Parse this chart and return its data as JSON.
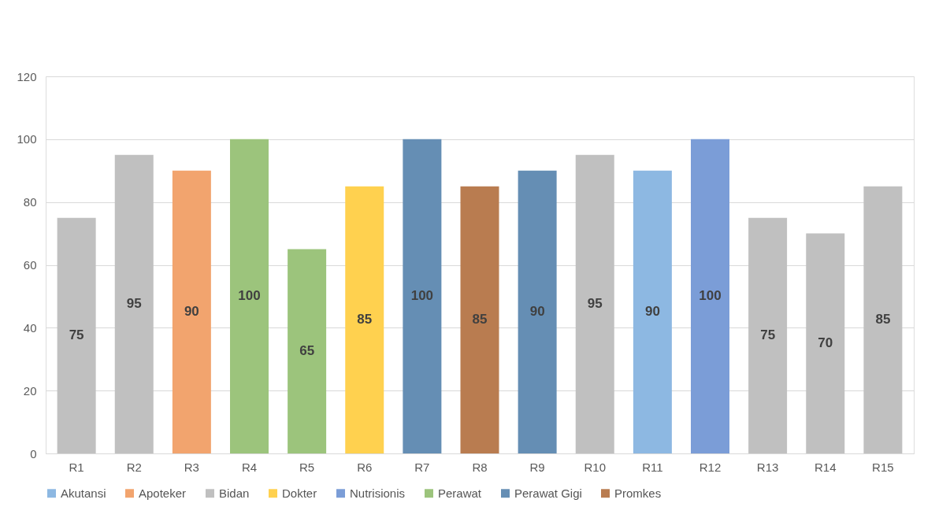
{
  "chart_data": {
    "type": "bar",
    "categories": [
      "R1",
      "R2",
      "R3",
      "R4",
      "R5",
      "R6",
      "R7",
      "R8",
      "R9",
      "R10",
      "R11",
      "R12",
      "R13",
      "R14",
      "R15"
    ],
    "series": [
      {
        "name": "Akutansi",
        "color": "#8db8e2",
        "values": [
          null,
          null,
          null,
          null,
          null,
          null,
          null,
          null,
          null,
          null,
          90,
          null,
          null,
          null,
          null
        ]
      },
      {
        "name": "Apoteker",
        "color": "#f2a46e",
        "values": [
          null,
          null,
          90,
          null,
          null,
          null,
          null,
          null,
          null,
          null,
          null,
          null,
          null,
          null,
          null
        ]
      },
      {
        "name": "Bidan",
        "color": "#c0c0c0",
        "values": [
          75,
          95,
          null,
          null,
          null,
          null,
          null,
          null,
          null,
          95,
          null,
          null,
          75,
          70,
          85
        ]
      },
      {
        "name": "Dokter",
        "color": "#ffd14f",
        "values": [
          null,
          null,
          null,
          null,
          null,
          85,
          null,
          null,
          null,
          null,
          null,
          null,
          null,
          null,
          null
        ]
      },
      {
        "name": "Nutrisionis",
        "color": "#7b9dd7",
        "values": [
          null,
          null,
          null,
          null,
          null,
          null,
          null,
          null,
          null,
          null,
          null,
          100,
          null,
          null,
          null
        ]
      },
      {
        "name": "Perawat",
        "color": "#9cc47c",
        "values": [
          null,
          null,
          null,
          100,
          65,
          null,
          null,
          null,
          null,
          null,
          null,
          null,
          null,
          null,
          null
        ]
      },
      {
        "name": "Perawat Gigi",
        "color": "#658eb4",
        "values": [
          null,
          null,
          null,
          null,
          null,
          null,
          100,
          null,
          90,
          null,
          null,
          null,
          null,
          null,
          null
        ]
      },
      {
        "name": "Promkes",
        "color": "#b97c50",
        "values": [
          null,
          null,
          null,
          null,
          null,
          null,
          null,
          85,
          null,
          null,
          null,
          null,
          null,
          null,
          null
        ]
      }
    ],
    "ylim": [
      0,
      120
    ],
    "yticks": [
      0,
      20,
      40,
      60,
      80,
      100,
      120
    ],
    "grid": "y",
    "legend": "bottom",
    "data_labels": true
  }
}
